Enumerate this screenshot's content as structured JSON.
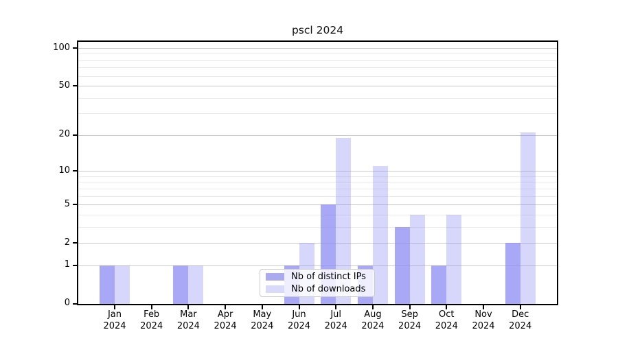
{
  "chart_data": {
    "type": "bar",
    "title": "pscl 2024",
    "categories": [
      "Jan",
      "Feb",
      "Mar",
      "Apr",
      "May",
      "Jun",
      "Jul",
      "Aug",
      "Sep",
      "Oct",
      "Nov",
      "Dec"
    ],
    "year_label": "2024",
    "series": [
      {
        "name": "Nb of distinct IPs",
        "values": [
          1,
          0,
          1,
          0,
          0,
          1,
          5,
          1,
          3,
          1,
          0,
          2
        ],
        "bar_color": "rgba(134,134,244,0.72)",
        "swatch_color": "#aaaaee"
      },
      {
        "name": "Nb of downloads",
        "values": [
          1,
          0,
          1,
          0,
          0,
          2,
          19,
          11,
          4,
          4,
          0,
          21
        ],
        "bar_color": "rgba(134,134,244,0.33)",
        "swatch_color": "#d9d9fa"
      }
    ],
    "y_axis": {
      "scale": "log1p",
      "major_ticks": [
        0,
        1,
        2,
        5,
        10,
        20,
        50,
        100
      ],
      "minor_ticks": [
        3,
        4,
        6,
        7,
        8,
        9,
        30,
        40,
        60,
        70,
        80,
        90
      ],
      "ylim": [
        0,
        100
      ]
    },
    "legend": {
      "position": "bottom-center"
    },
    "grid": "on",
    "colors": {
      "grid_major": "#c9c9c9",
      "grid_minor": "#eaeaef",
      "axis": "#000000"
    }
  }
}
